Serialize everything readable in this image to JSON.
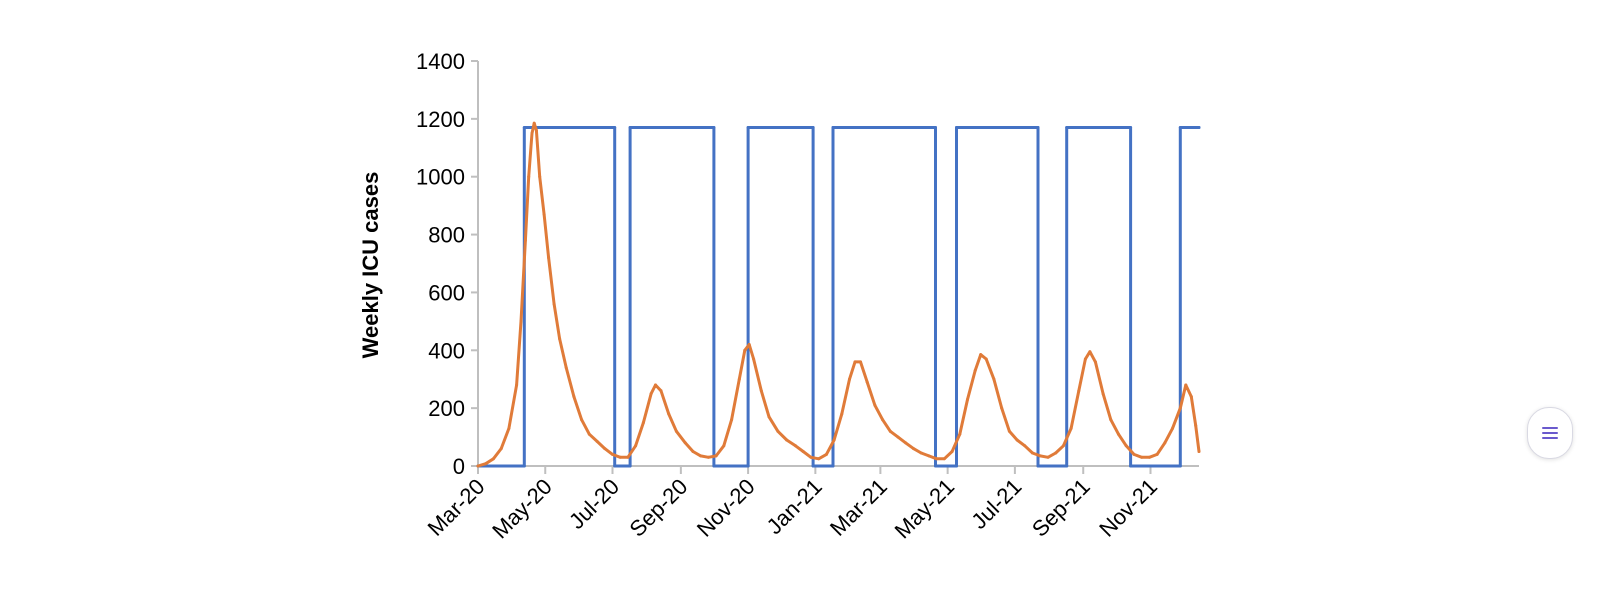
{
  "chart_data": {
    "type": "line",
    "title": "",
    "xlabel": "",
    "ylabel": "Weekly ICU cases",
    "ylim": [
      0,
      1400
    ],
    "yticks": [
      "0",
      "200",
      "400",
      "600",
      "800",
      "1000",
      "1200",
      "1400"
    ],
    "xlim": [
      "2020-03-01",
      "2021-12-15"
    ],
    "xticks": [
      {
        "date": "2020-03-01",
        "label": "Mar-20"
      },
      {
        "date": "2020-05-01",
        "label": "May-20"
      },
      {
        "date": "2020-07-01",
        "label": "Jul-20"
      },
      {
        "date": "2020-09-01",
        "label": "Sep-20"
      },
      {
        "date": "2020-11-01",
        "label": "Nov-20"
      },
      {
        "date": "2021-01-01",
        "label": "Jan-21"
      },
      {
        "date": "2021-03-01",
        "label": "Mar-21"
      },
      {
        "date": "2021-05-01",
        "label": "May-21"
      },
      {
        "date": "2021-07-01",
        "label": "Jul-21"
      },
      {
        "date": "2021-09-01",
        "label": "Sep-21"
      },
      {
        "date": "2021-11-01",
        "label": "Nov-21"
      }
    ],
    "grid": false,
    "legend": "none",
    "series": [
      {
        "color": "#4472C4",
        "style": "step",
        "points": [
          [
            "2020-03-01",
            0
          ],
          [
            "2020-04-12",
            0
          ],
          [
            "2020-04-12",
            1170
          ],
          [
            "2020-07-03",
            1170
          ],
          [
            "2020-07-03",
            0
          ],
          [
            "2020-07-17",
            0
          ],
          [
            "2020-07-17",
            1170
          ],
          [
            "2020-10-01",
            1170
          ],
          [
            "2020-10-01",
            0
          ],
          [
            "2020-11-01",
            0
          ],
          [
            "2020-11-01",
            1170
          ],
          [
            "2020-12-30",
            1170
          ],
          [
            "2020-12-30",
            0
          ],
          [
            "2021-01-17",
            0
          ],
          [
            "2021-01-17",
            1170
          ],
          [
            "2021-04-20",
            1170
          ],
          [
            "2021-04-20",
            0
          ],
          [
            "2021-05-09",
            0
          ],
          [
            "2021-05-09",
            1170
          ],
          [
            "2021-07-22",
            1170
          ],
          [
            "2021-07-22",
            0
          ],
          [
            "2021-08-17",
            0
          ],
          [
            "2021-08-17",
            1170
          ],
          [
            "2021-10-14",
            1170
          ],
          [
            "2021-10-14",
            0
          ],
          [
            "2021-11-28",
            0
          ],
          [
            "2021-11-28",
            1170
          ],
          [
            "2021-12-15",
            1170
          ]
        ]
      },
      {
        "color": "#E07B39",
        "style": "line",
        "points": [
          [
            "2020-03-01",
            0
          ],
          [
            "2020-03-08",
            8
          ],
          [
            "2020-03-15",
            25
          ],
          [
            "2020-03-22",
            60
          ],
          [
            "2020-03-29",
            130
          ],
          [
            "2020-04-05",
            280
          ],
          [
            "2020-04-09",
            500
          ],
          [
            "2020-04-13",
            780
          ],
          [
            "2020-04-16",
            1000
          ],
          [
            "2020-04-19",
            1150
          ],
          [
            "2020-04-21",
            1185
          ],
          [
            "2020-04-23",
            1160
          ],
          [
            "2020-04-26",
            1000
          ],
          [
            "2020-04-30",
            870
          ],
          [
            "2020-05-04",
            720
          ],
          [
            "2020-05-09",
            560
          ],
          [
            "2020-05-14",
            440
          ],
          [
            "2020-05-20",
            340
          ],
          [
            "2020-05-27",
            240
          ],
          [
            "2020-06-03",
            160
          ],
          [
            "2020-06-10",
            110
          ],
          [
            "2020-06-17",
            85
          ],
          [
            "2020-06-24",
            60
          ],
          [
            "2020-07-01",
            40
          ],
          [
            "2020-07-08",
            30
          ],
          [
            "2020-07-15",
            30
          ],
          [
            "2020-07-22",
            70
          ],
          [
            "2020-07-29",
            150
          ],
          [
            "2020-08-05",
            250
          ],
          [
            "2020-08-09",
            280
          ],
          [
            "2020-08-14",
            260
          ],
          [
            "2020-08-21",
            180
          ],
          [
            "2020-08-28",
            120
          ],
          [
            "2020-09-05",
            80
          ],
          [
            "2020-09-12",
            50
          ],
          [
            "2020-09-19",
            35
          ],
          [
            "2020-09-26",
            30
          ],
          [
            "2020-10-03",
            35
          ],
          [
            "2020-10-10",
            70
          ],
          [
            "2020-10-17",
            160
          ],
          [
            "2020-10-24",
            300
          ],
          [
            "2020-10-29",
            400
          ],
          [
            "2020-11-02",
            420
          ],
          [
            "2020-11-06",
            370
          ],
          [
            "2020-11-13",
            260
          ],
          [
            "2020-11-20",
            170
          ],
          [
            "2020-11-28",
            120
          ],
          [
            "2020-12-06",
            90
          ],
          [
            "2020-12-14",
            70
          ],
          [
            "2020-12-21",
            50
          ],
          [
            "2020-12-28",
            30
          ],
          [
            "2021-01-04",
            25
          ],
          [
            "2021-01-11",
            40
          ],
          [
            "2021-01-18",
            90
          ],
          [
            "2021-01-25",
            180
          ],
          [
            "2021-02-01",
            300
          ],
          [
            "2021-02-06",
            360
          ],
          [
            "2021-02-11",
            360
          ],
          [
            "2021-02-17",
            290
          ],
          [
            "2021-02-24",
            210
          ],
          [
            "2021-03-03",
            160
          ],
          [
            "2021-03-10",
            120
          ],
          [
            "2021-03-17",
            100
          ],
          [
            "2021-03-24",
            80
          ],
          [
            "2021-03-31",
            60
          ],
          [
            "2021-04-07",
            45
          ],
          [
            "2021-04-14",
            35
          ],
          [
            "2021-04-21",
            25
          ],
          [
            "2021-04-28",
            25
          ],
          [
            "2021-05-05",
            50
          ],
          [
            "2021-05-12",
            110
          ],
          [
            "2021-05-19",
            230
          ],
          [
            "2021-05-26",
            330
          ],
          [
            "2021-05-31",
            385
          ],
          [
            "2021-06-05",
            370
          ],
          [
            "2021-06-12",
            300
          ],
          [
            "2021-06-19",
            200
          ],
          [
            "2021-06-26",
            120
          ],
          [
            "2021-07-03",
            90
          ],
          [
            "2021-07-10",
            70
          ],
          [
            "2021-07-17",
            45
          ],
          [
            "2021-07-24",
            35
          ],
          [
            "2021-07-31",
            30
          ],
          [
            "2021-08-07",
            45
          ],
          [
            "2021-08-14",
            70
          ],
          [
            "2021-08-21",
            130
          ],
          [
            "2021-08-28",
            260
          ],
          [
            "2021-09-03",
            370
          ],
          [
            "2021-09-07",
            395
          ],
          [
            "2021-09-12",
            360
          ],
          [
            "2021-09-19",
            250
          ],
          [
            "2021-09-26",
            160
          ],
          [
            "2021-10-03",
            110
          ],
          [
            "2021-10-10",
            70
          ],
          [
            "2021-10-17",
            40
          ],
          [
            "2021-10-24",
            30
          ],
          [
            "2021-10-31",
            30
          ],
          [
            "2021-11-07",
            40
          ],
          [
            "2021-11-14",
            80
          ],
          [
            "2021-11-21",
            130
          ],
          [
            "2021-11-28",
            200
          ],
          [
            "2021-12-03",
            280
          ],
          [
            "2021-12-08",
            240
          ],
          [
            "2021-12-12",
            140
          ],
          [
            "2021-12-15",
            50
          ]
        ]
      }
    ]
  },
  "ui": {
    "menu_button_icon": "menu-icon"
  }
}
